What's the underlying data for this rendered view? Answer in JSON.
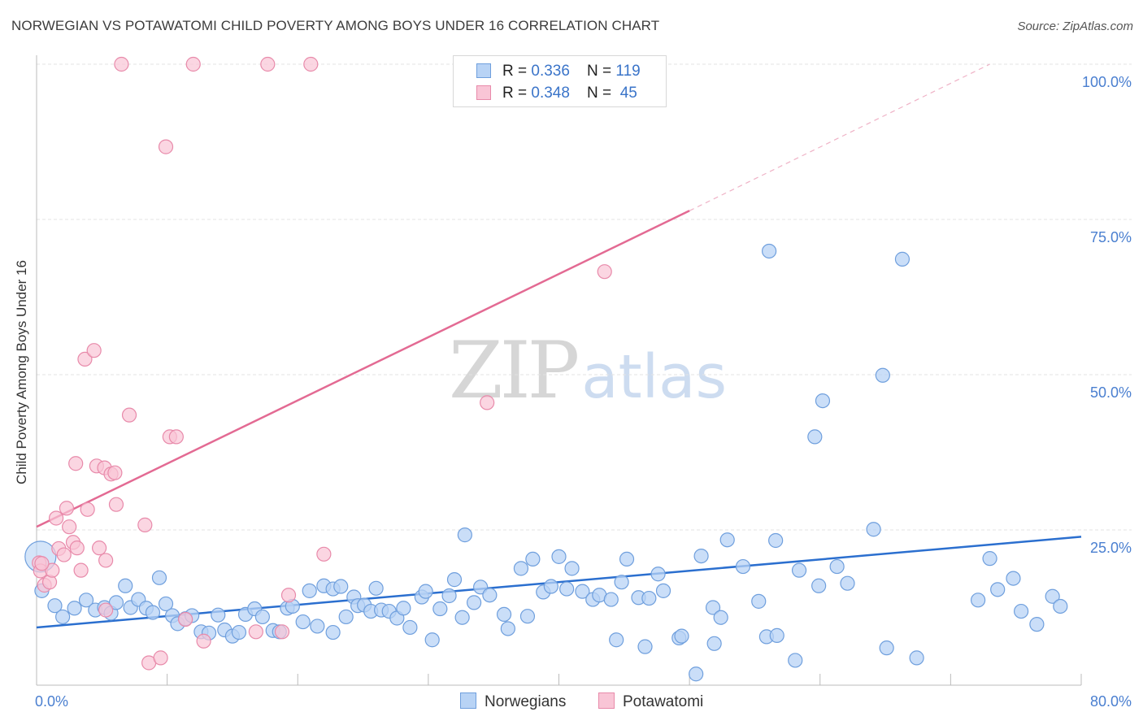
{
  "header": {
    "title": "NORWEGIAN VS POTAWATOMI CHILD POVERTY AMONG BOYS UNDER 16 CORRELATION CHART",
    "source": "Source: ZipAtlas.com"
  },
  "legend": {
    "rows": [
      {
        "r_label": "R = ",
        "r_value": "0.336",
        "n_label": "N = ",
        "n_value": "119"
      },
      {
        "r_label": "R = ",
        "r_value": "0.348",
        "n_label": "N = ",
        "n_value": "45"
      }
    ],
    "bottom": [
      "Norwegians",
      "Potawatomi"
    ]
  },
  "watermark": {
    "zip": "ZIP",
    "atlas": "atlas"
  },
  "colors": {
    "norwegian_fill": "#b8d3f5",
    "norwegian_stroke": "#6f9fdd",
    "norwegian_line": "#2b6fcf",
    "potawatomi_fill": "#f9c5d6",
    "potawatomi_stroke": "#e88aaa",
    "potawatomi_line": "#e36a93",
    "tick_text": "#4a7fd0",
    "grid": "#e3e3e3"
  },
  "chart_data": {
    "type": "scatter",
    "title": "NORWEGIAN VS POTAWATOMI CHILD POVERTY AMONG BOYS UNDER 16 CORRELATION CHART",
    "xlabel": "",
    "ylabel": "Child Poverty Among Boys Under 16",
    "xlim": [
      0,
      80
    ],
    "ylim": [
      0,
      100
    ],
    "x_tick_labels": [
      "0.0%",
      "80.0%"
    ],
    "y_tick_labels": [
      "25.0%",
      "50.0%",
      "75.0%",
      "100.0%"
    ],
    "y_ticks": [
      25,
      50,
      75,
      100
    ],
    "grid": true,
    "legend_position": "top-center",
    "series": [
      {
        "name": "Norwegians",
        "points": [
          [
            0.3,
            20.7
          ],
          [
            0.4,
            15.2
          ],
          [
            1.4,
            12.8
          ],
          [
            2.0,
            11.0
          ],
          [
            2.9,
            12.4
          ],
          [
            3.8,
            13.7
          ],
          [
            4.5,
            12.1
          ],
          [
            5.2,
            12.5
          ],
          [
            5.7,
            11.6
          ],
          [
            6.1,
            13.3
          ],
          [
            6.8,
            16.0
          ],
          [
            7.2,
            12.5
          ],
          [
            7.8,
            13.8
          ],
          [
            8.4,
            12.4
          ],
          [
            8.9,
            11.7
          ],
          [
            9.4,
            17.3
          ],
          [
            9.9,
            13.1
          ],
          [
            10.4,
            11.2
          ],
          [
            10.8,
            9.9
          ],
          [
            11.4,
            10.7
          ],
          [
            11.9,
            11.2
          ],
          [
            12.6,
            8.6
          ],
          [
            13.2,
            8.4
          ],
          [
            13.9,
            11.3
          ],
          [
            14.4,
            8.9
          ],
          [
            15.0,
            7.9
          ],
          [
            15.5,
            8.5
          ],
          [
            16.0,
            11.4
          ],
          [
            16.7,
            12.3
          ],
          [
            17.3,
            11.0
          ],
          [
            18.1,
            8.8
          ],
          [
            18.6,
            8.6
          ],
          [
            19.2,
            12.4
          ],
          [
            19.6,
            12.7
          ],
          [
            20.4,
            10.2
          ],
          [
            20.9,
            15.2
          ],
          [
            21.5,
            9.5
          ],
          [
            22.0,
            16.0
          ],
          [
            22.7,
            8.5
          ],
          [
            22.7,
            15.5
          ],
          [
            23.3,
            15.9
          ],
          [
            23.7,
            11.0
          ],
          [
            24.3,
            14.2
          ],
          [
            24.6,
            12.8
          ],
          [
            25.1,
            12.9
          ],
          [
            25.6,
            11.9
          ],
          [
            26.0,
            15.6
          ],
          [
            26.4,
            12.1
          ],
          [
            27.0,
            11.9
          ],
          [
            27.6,
            10.8
          ],
          [
            28.1,
            12.4
          ],
          [
            28.6,
            9.3
          ],
          [
            29.5,
            14.2
          ],
          [
            29.8,
            15.1
          ],
          [
            30.3,
            7.3
          ],
          [
            30.9,
            12.3
          ],
          [
            31.6,
            14.4
          ],
          [
            32.0,
            17.0
          ],
          [
            32.6,
            10.9
          ],
          [
            32.8,
            24.2
          ],
          [
            33.5,
            13.3
          ],
          [
            34.0,
            15.8
          ],
          [
            34.7,
            14.5
          ],
          [
            35.8,
            11.4
          ],
          [
            36.1,
            9.1
          ],
          [
            37.1,
            18.8
          ],
          [
            37.6,
            11.1
          ],
          [
            38.0,
            20.3
          ],
          [
            38.8,
            15.0
          ],
          [
            39.4,
            15.9
          ],
          [
            40.0,
            20.7
          ],
          [
            40.6,
            15.5
          ],
          [
            41.0,
            18.8
          ],
          [
            41.8,
            15.1
          ],
          [
            42.6,
            13.8
          ],
          [
            43.1,
            14.5
          ],
          [
            44.0,
            13.8
          ],
          [
            44.4,
            7.3
          ],
          [
            44.8,
            16.6
          ],
          [
            45.2,
            20.3
          ],
          [
            46.1,
            14.1
          ],
          [
            46.6,
            6.2
          ],
          [
            46.9,
            14.0
          ],
          [
            47.6,
            17.9
          ],
          [
            48.0,
            15.2
          ],
          [
            49.2,
            7.6
          ],
          [
            49.4,
            7.9
          ],
          [
            50.5,
            1.8
          ],
          [
            50.9,
            20.8
          ],
          [
            51.8,
            12.5
          ],
          [
            51.9,
            6.7
          ],
          [
            52.4,
            10.9
          ],
          [
            52.9,
            23.4
          ],
          [
            54.1,
            19.1
          ],
          [
            55.3,
            13.5
          ],
          [
            55.9,
            7.8
          ],
          [
            56.1,
            69.9
          ],
          [
            56.6,
            23.3
          ],
          [
            56.7,
            8.0
          ],
          [
            58.1,
            4.0
          ],
          [
            58.4,
            18.5
          ],
          [
            59.6,
            40.0
          ],
          [
            59.9,
            16.0
          ],
          [
            60.2,
            45.8
          ],
          [
            61.3,
            19.1
          ],
          [
            62.1,
            16.4
          ],
          [
            64.1,
            25.1
          ],
          [
            64.8,
            49.9
          ],
          [
            65.1,
            6.0
          ],
          [
            66.3,
            68.6
          ],
          [
            67.4,
            4.4
          ],
          [
            72.1,
            13.7
          ],
          [
            73.0,
            20.4
          ],
          [
            73.6,
            15.4
          ],
          [
            74.8,
            17.2
          ],
          [
            75.4,
            11.9
          ],
          [
            76.6,
            9.8
          ],
          [
            77.8,
            14.3
          ],
          [
            78.4,
            12.7
          ]
        ],
        "sizes_note": "one enlarged marker at x=0.3",
        "trend": {
          "x0": 0,
          "y0": 9.3,
          "x1": 80,
          "y1": 23.9
        }
      },
      {
        "name": "Potawatomi",
        "points": [
          [
            0.2,
            19.7
          ],
          [
            0.3,
            18.4
          ],
          [
            0.6,
            16.1
          ],
          [
            1.0,
            16.6
          ],
          [
            1.2,
            18.5
          ],
          [
            1.5,
            26.9
          ],
          [
            1.7,
            22.0
          ],
          [
            2.1,
            21.0
          ],
          [
            2.3,
            28.5
          ],
          [
            2.5,
            25.5
          ],
          [
            2.8,
            23.0
          ],
          [
            3.0,
            35.7
          ],
          [
            3.1,
            22.1
          ],
          [
            3.4,
            18.5
          ],
          [
            3.7,
            52.5
          ],
          [
            3.9,
            28.3
          ],
          [
            4.4,
            53.9
          ],
          [
            4.6,
            35.3
          ],
          [
            4.8,
            22.1
          ],
          [
            5.2,
            35.0
          ],
          [
            5.3,
            12.1
          ],
          [
            5.3,
            20.1
          ],
          [
            5.7,
            34.0
          ],
          [
            6.0,
            34.2
          ],
          [
            6.1,
            29.1
          ],
          [
            6.5,
            100.0
          ],
          [
            7.1,
            43.5
          ],
          [
            8.3,
            25.8
          ],
          [
            8.6,
            3.6
          ],
          [
            9.5,
            4.4
          ],
          [
            9.9,
            86.7
          ],
          [
            10.2,
            40.0
          ],
          [
            10.7,
            40.0
          ],
          [
            11.4,
            10.6
          ],
          [
            12.0,
            100.0
          ],
          [
            12.8,
            7.1
          ],
          [
            16.8,
            8.6
          ],
          [
            17.7,
            100.0
          ],
          [
            18.8,
            8.6
          ],
          [
            19.3,
            14.5
          ],
          [
            21.0,
            100.0
          ],
          [
            22.0,
            21.1
          ],
          [
            34.5,
            45.5
          ],
          [
            43.5,
            66.6
          ],
          [
            0.4,
            19.6
          ]
        ],
        "trend": {
          "x0": 0,
          "y0": 25.5,
          "x1": 50,
          "y1": 76.4,
          "dashed_to": {
            "x": 73,
            "y": 100
          }
        }
      }
    ]
  }
}
